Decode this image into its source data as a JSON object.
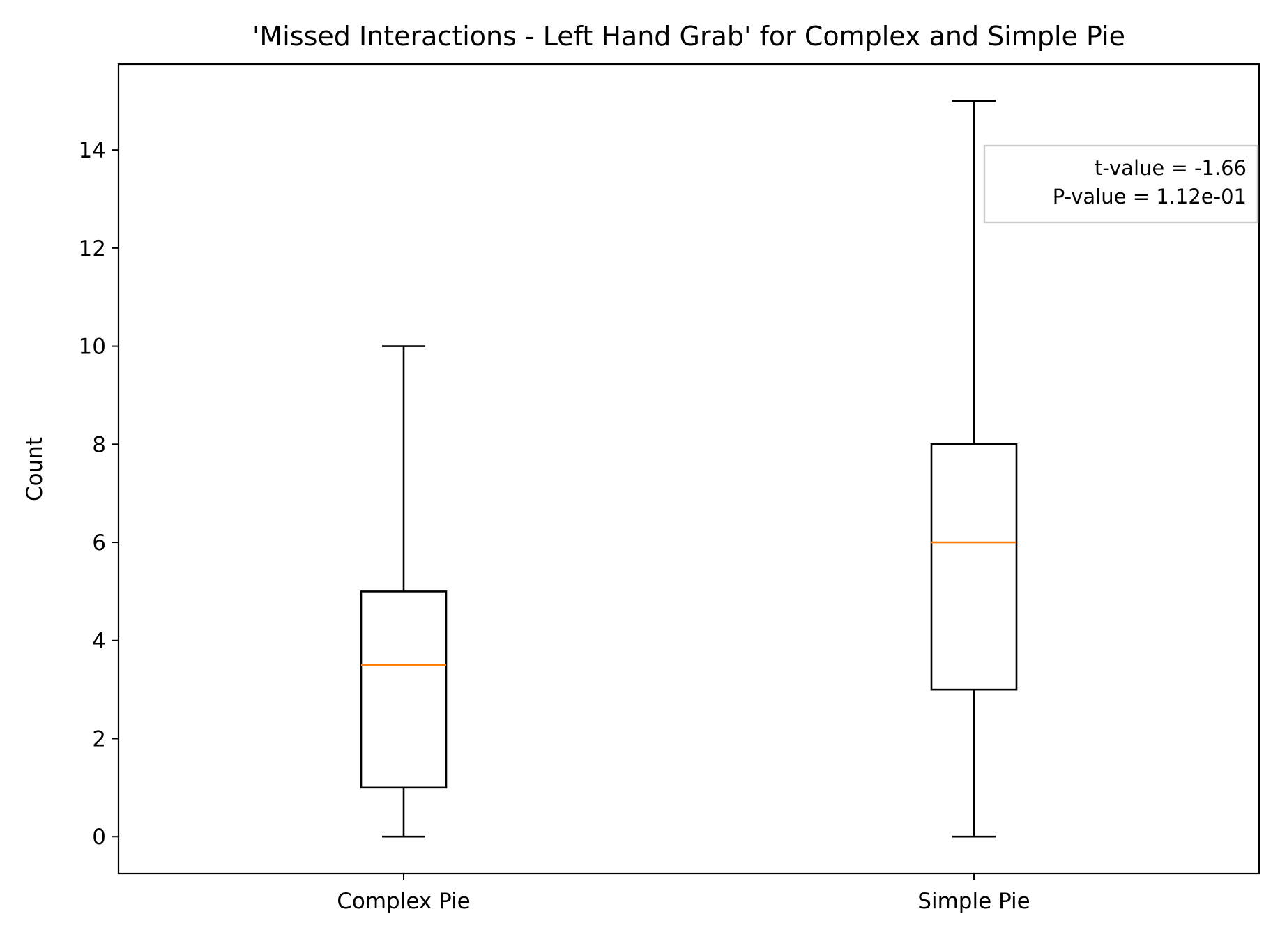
{
  "chart_data": {
    "type": "box",
    "title": "'Missed Interactions - Left Hand Grab' for Complex and Simple Pie",
    "xlabel": "",
    "ylabel": "Count",
    "ylim": [
      -0.75,
      15.75
    ],
    "yticks": [
      0,
      2,
      4,
      6,
      8,
      10,
      12,
      14
    ],
    "categories": [
      "Complex Pie",
      "Simple Pie"
    ],
    "boxes": [
      {
        "category": "Complex Pie",
        "whisker_low": 0,
        "q1": 1,
        "median": 3.5,
        "q3": 5,
        "whisker_high": 10
      },
      {
        "category": "Simple Pie",
        "whisker_low": 0,
        "q1": 3,
        "median": 6,
        "q3": 8,
        "whisker_high": 15
      }
    ],
    "annotation": {
      "lines": [
        "t-value = -1.66",
        "P-value = 1.12e-01"
      ],
      "placement": "top-right"
    },
    "grid": false,
    "colors": {
      "box": "#000000",
      "median": "#ff7f0e",
      "annotation_border": "#cccccc"
    }
  }
}
